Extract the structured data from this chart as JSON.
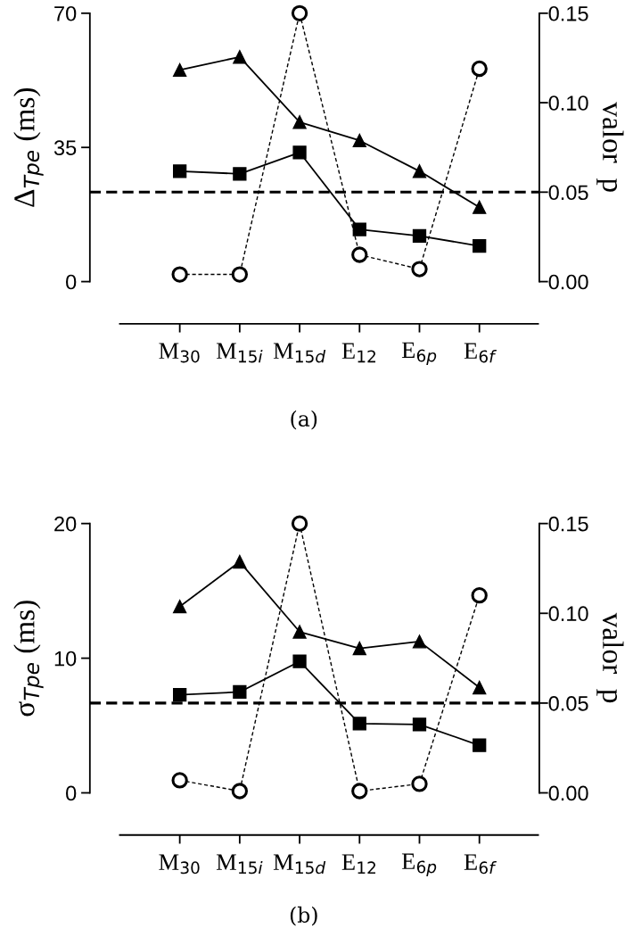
{
  "chart_data": [
    {
      "type": "line",
      "categories": [
        "M$_{30}$",
        "M$_{15i}$",
        "M$_{15d}$",
        "E$_{12}$",
        "E$_{6p}$",
        "E$_{6f}$"
      ],
      "ylabel": "Δ$_{Tpe}$ (ms)",
      "y2label": "valor  p",
      "ylim": [
        0,
        70
      ],
      "yticks": [
        0,
        35,
        70
      ],
      "y2lim": [
        0,
        0.15
      ],
      "y2ticks": [
        {
          "value": 0,
          "label": "0.00"
        },
        {
          "value": 0.05,
          "label": "0.05"
        },
        {
          "value": 0.1,
          "label": "0.10"
        },
        {
          "value": 0.15,
          "label": "0.15"
        }
      ],
      "series": [
        {
          "color": "#000000",
          "marker": "triangle",
          "line_style": "solid",
          "values": [
            55.2,
            58.6,
            41.6,
            36.8,
            28.8,
            19.4
          ]
        },
        {
          "color": "#000000",
          "marker": "square",
          "line_style": "solid",
          "values": [
            28.8,
            28.1,
            33.7,
            13.6,
            11.9,
            9.3
          ]
        },
        {
          "color": "#000000",
          "marker": "circle",
          "line_style": "dotted",
          "axis": "y2",
          "values": [
            0.004,
            0.004,
            0.15,
            0.015,
            0.007,
            0.119
          ]
        }
      ],
      "ref_lines": [
        {
          "axis": "y2",
          "value": 0.05,
          "line_style": "dashed",
          "color": "#000000"
        }
      ],
      "annotations": [
        "(a)"
      ],
      "grid": false,
      "legend": false
    },
    {
      "type": "line",
      "categories": [
        "M$_{30}$",
        "M$_{15i}$",
        "M$_{15d}$",
        "E$_{12}$",
        "E$_{6p}$",
        "E$_{6f}$"
      ],
      "ylabel": "σ$_{Tpe}$ (ms)",
      "y2label": "valor  p",
      "ylim": [
        0,
        20
      ],
      "yticks": [
        0,
        10,
        20
      ],
      "y2lim": [
        0,
        0.15
      ],
      "y2ticks": [
        {
          "value": 0,
          "label": "0.00"
        },
        {
          "value": 0.05,
          "label": "0.05"
        },
        {
          "value": 0.1,
          "label": "0.10"
        },
        {
          "value": 0.15,
          "label": "0.15"
        }
      ],
      "series": [
        {
          "color": "#000000",
          "marker": "triangle",
          "line_style": "solid",
          "values": [
            13.84,
            17.16,
            11.96,
            10.73,
            11.24,
            7.82
          ]
        },
        {
          "color": "#000000",
          "marker": "square",
          "line_style": "solid",
          "values": [
            7.28,
            7.49,
            9.76,
            5.14,
            5.08,
            3.53
          ]
        },
        {
          "color": "#000000",
          "marker": "circle",
          "line_style": "dotted",
          "axis": "y2",
          "values": [
            0.007,
            0.001,
            0.15,
            0.001,
            0.005,
            0.11
          ]
        }
      ],
      "ref_lines": [
        {
          "axis": "y2",
          "value": 0.05,
          "line_style": "dashed",
          "color": "#000000"
        }
      ],
      "annotations": [
        "(b)"
      ],
      "grid": false,
      "legend": false
    }
  ]
}
